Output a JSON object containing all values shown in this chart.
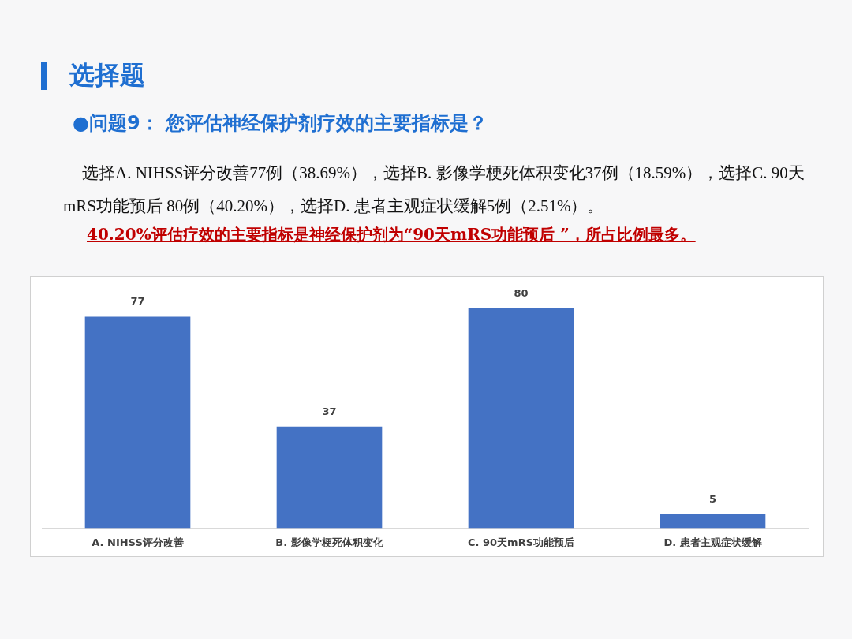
{
  "chart_data": {
    "type": "bar",
    "title": "选择题",
    "subtitle": "●问题9： 您评估神经保护剂疗效的主要指标是？",
    "annotations": [
      "选择A. NIHSS评分改善77例（38.69%），选择B. 影像学梗死体积变化37例（18.59%），选择C. 90天mRS功能预后 80例（40.20%），选择D. 患者主观症状缓解5例（2.51%）。",
      "40.20%评估疗效的主要指标是神经保护剂为“90天mRS功能预后 ”，所占比例最多。"
    ],
    "categories": [
      "A. NIHSS评分改善",
      "B. 影像学梗死体积变化",
      "C. 90天mRS功能预后",
      "D. 患者主观症状缓解"
    ],
    "values": [
      77,
      37,
      80,
      5
    ],
    "color": "#4472c4",
    "data_labels": true,
    "grid": false,
    "legend": false
  }
}
